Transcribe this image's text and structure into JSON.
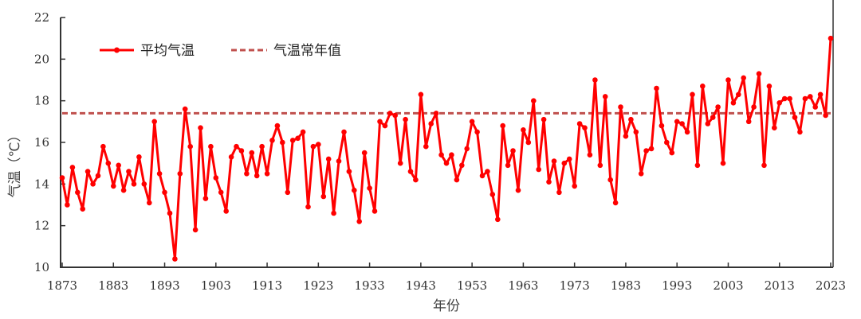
{
  "chart_data": {
    "type": "line",
    "title": "",
    "xlabel": "年份",
    "ylabel": "气温（℃）",
    "xlim": [
      1873,
      2023
    ],
    "ylim": [
      10,
      22
    ],
    "yticks": [
      10,
      12,
      14,
      16,
      18,
      20,
      22
    ],
    "xticks": [
      1873,
      1883,
      1893,
      1903,
      1913,
      1923,
      1933,
      1943,
      1953,
      1963,
      1973,
      1983,
      1993,
      2003,
      2013,
      2023
    ],
    "grid": false,
    "legend_position": "top-left",
    "series": [
      {
        "name": "平均气温",
        "color": "#ff0000",
        "style": "solid-with-markers",
        "x_start": 1873,
        "values": [
          14.3,
          13.0,
          14.8,
          13.6,
          12.8,
          14.6,
          14.0,
          14.4,
          15.8,
          15.0,
          13.9,
          14.9,
          13.7,
          14.6,
          14.0,
          15.3,
          14.0,
          13.1,
          17.0,
          14.5,
          13.6,
          12.6,
          10.4,
          14.5,
          17.6,
          15.8,
          11.8,
          16.7,
          13.3,
          15.8,
          14.3,
          13.6,
          12.7,
          15.3,
          15.8,
          15.6,
          14.5,
          15.5,
          14.4,
          15.8,
          14.5,
          16.1,
          16.8,
          16.0,
          13.6,
          16.1,
          16.2,
          16.5,
          12.9,
          15.8,
          15.9,
          13.4,
          15.2,
          12.6,
          15.1,
          16.5,
          14.6,
          13.7,
          12.2,
          15.5,
          13.8,
          12.7,
          17.0,
          16.8,
          17.4,
          17.3,
          15.0,
          17.1,
          14.6,
          14.2,
          18.3,
          15.8,
          16.9,
          17.4,
          15.4,
          15.0,
          15.4,
          14.2,
          14.9,
          15.7,
          17.0,
          16.5,
          14.4,
          14.6,
          13.5,
          12.3,
          16.8,
          14.9,
          15.6,
          13.7,
          16.6,
          16.0,
          18.0,
          14.7,
          17.1,
          14.1,
          15.1,
          13.6,
          15.0,
          15.2,
          13.9,
          16.9,
          16.7,
          15.4,
          19.0,
          14.9,
          18.2,
          14.2,
          13.1,
          17.7,
          16.3,
          17.1,
          16.5,
          14.5,
          15.6,
          15.7,
          18.6,
          16.8,
          16.0,
          15.5,
          17.0,
          16.9,
          16.5,
          18.3,
          14.9,
          18.7,
          16.9,
          17.2,
          17.7,
          15.0,
          19.0,
          17.9,
          18.3,
          19.1,
          17.0,
          17.7,
          19.3,
          14.9,
          18.7,
          16.7,
          17.9,
          18.1,
          18.1,
          17.2,
          16.5,
          18.1,
          18.2,
          17.7,
          18.3,
          17.3,
          21.0
        ]
      },
      {
        "name": "气温常年值",
        "color": "#c0504d",
        "style": "dashed",
        "value": 17.4
      }
    ]
  }
}
